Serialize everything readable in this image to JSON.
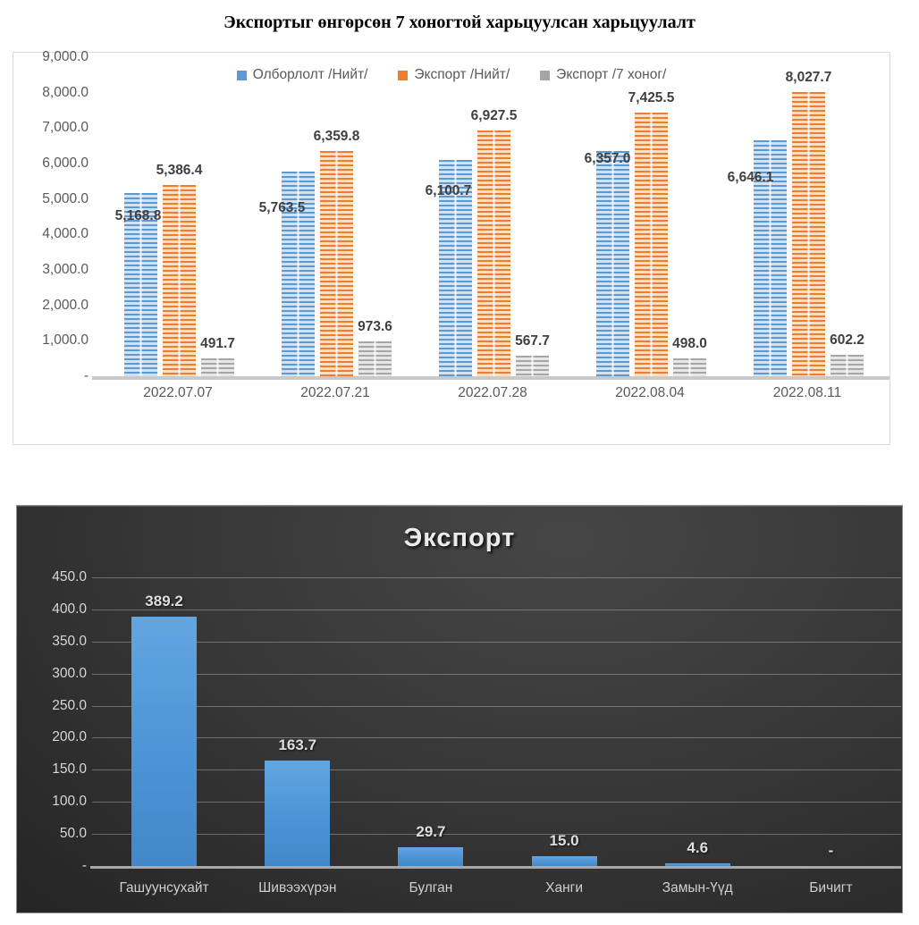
{
  "chart_data": [
    {
      "type": "bar",
      "title": "Экспортыг өнгөрсөн 7 хоногтой харьцуулсан харьцуулалт",
      "categories": [
        "2022.07.07",
        "2022.07.21",
        "2022.07.28",
        "2022.08.04",
        "2022.08.11"
      ],
      "series": [
        {
          "name": "Олборлолт /Нийт/",
          "color": "#5b9bd5",
          "values": [
            5168.8,
            5763.5,
            6100.7,
            6357.0,
            6646.1
          ],
          "labels": [
            "5,168.8",
            "5,763.5",
            "6,100.7",
            "6,357.0",
            "6,646.1"
          ]
        },
        {
          "name": "Экспорт /Нийт/",
          "color": "#ed7d31",
          "values": [
            5386.4,
            6359.8,
            6927.5,
            7425.5,
            8027.7
          ],
          "labels": [
            "5,386.4",
            "6,359.8",
            "6,927.5",
            "7,425.5",
            "8,027.7"
          ]
        },
        {
          "name": "Экспорт /7 хоног/",
          "color": "#a5a5a5",
          "values": [
            491.7,
            973.6,
            567.7,
            498.0,
            602.2
          ],
          "labels": [
            "491.7",
            "973.6",
            "567.7",
            "498.0",
            "602.2"
          ]
        }
      ],
      "y_axis": {
        "min": 0,
        "max": 9000,
        "ticks": [
          {
            "label": "9,000.0",
            "value": 9000
          },
          {
            "label": "8,000.0",
            "value": 8000
          },
          {
            "label": "7,000.0",
            "value": 7000
          },
          {
            "label": "6,000.0",
            "value": 6000
          },
          {
            "label": "5,000.0",
            "value": 5000
          },
          {
            "label": "4,000.0",
            "value": 4000
          },
          {
            "label": "3,000.0",
            "value": 3000
          },
          {
            "label": "2,000.0",
            "value": 2000
          },
          {
            "label": "1,000.0",
            "value": 1000
          },
          {
            "label": "-",
            "value": 0
          }
        ]
      },
      "legend_position": "top",
      "grid": false,
      "plot_background": "#ffffff",
      "text_color": "#595959",
      "data_label_color": "#404040"
    },
    {
      "type": "bar",
      "title": "Экспорт",
      "categories": [
        "Гашуунсухайт",
        "Шивээхүрэн",
        "Булган",
        "Ханги",
        "Замын-Үүд",
        "Бичигт"
      ],
      "series": [
        {
          "name": "Экспорт",
          "color": "#4d94d6",
          "values": [
            389.2,
            163.7,
            29.7,
            15.0,
            4.6,
            0
          ],
          "labels": [
            "389.2",
            "163.7",
            "29.7",
            "15.0",
            "4.6",
            "-"
          ]
        }
      ],
      "y_axis": {
        "min": 0,
        "max": 450,
        "ticks": [
          {
            "label": "450.0",
            "value": 450
          },
          {
            "label": "400.0",
            "value": 400
          },
          {
            "label": "350.0",
            "value": 350
          },
          {
            "label": "300.0",
            "value": 300
          },
          {
            "label": "250.0",
            "value": 250
          },
          {
            "label": "200.0",
            "value": 200
          },
          {
            "label": "150.0",
            "value": 150
          },
          {
            "label": "100.0",
            "value": 100
          },
          {
            "label": "50.0",
            "value": 50
          },
          {
            "label": "-",
            "value": 0
          }
        ]
      },
      "legend_position": "none",
      "grid": true,
      "plot_background": "dark-gradient",
      "text_color": "#d6d6d6",
      "data_label_color": "#dedede"
    }
  ]
}
